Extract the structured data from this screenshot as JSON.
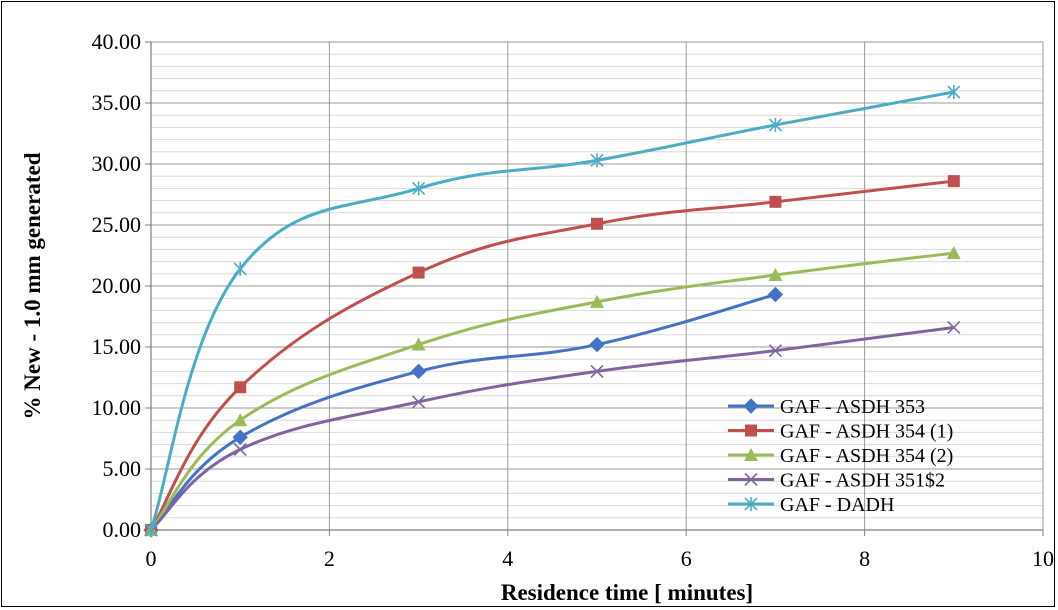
{
  "chart_data": {
    "type": "line",
    "title": "",
    "xlabel": "Residence time [ minutes]",
    "ylabel": "% New - 1.0 mm generated",
    "xlim": [
      0,
      10
    ],
    "ylim": [
      0,
      40
    ],
    "x_ticks": [
      0,
      2,
      4,
      6,
      8,
      10
    ],
    "x_tick_labels": [
      "0",
      "2",
      "4",
      "6",
      "8",
      "10"
    ],
    "y_ticks": [
      0,
      5,
      10,
      15,
      20,
      25,
      30,
      35,
      40
    ],
    "y_tick_labels": [
      "0.00",
      "5.00",
      "10.00",
      "15.00",
      "20.00",
      "25.00",
      "30.00",
      "35.00",
      "40.00"
    ],
    "y_minor_step": 1,
    "grid": true,
    "smooth": true,
    "legend_position": "bottom-right",
    "series": [
      {
        "name": "GAF - ASDH 353",
        "marker": "diamond",
        "color": "#4472C4",
        "x": [
          0,
          1,
          3,
          5,
          7
        ],
        "y": [
          0,
          7.6,
          13.0,
          15.2,
          19.3
        ]
      },
      {
        "name": "GAF - ASDH 354 (1)",
        "marker": "square",
        "color": "#C0504D",
        "x": [
          0,
          1,
          3,
          5,
          7,
          9
        ],
        "y": [
          0,
          11.7,
          21.1,
          25.1,
          26.9,
          28.6
        ]
      },
      {
        "name": "GAF - ASDH 354 (2)",
        "marker": "triangle",
        "color": "#9BBB59",
        "x": [
          0,
          1,
          3,
          5,
          7,
          9
        ],
        "y": [
          0,
          9.0,
          15.2,
          18.7,
          20.9,
          22.7
        ]
      },
      {
        "name": "GAF - ASDH 351$2",
        "marker": "x",
        "color": "#8064A2",
        "x": [
          0,
          1,
          3,
          5,
          7,
          9
        ],
        "y": [
          0,
          6.6,
          10.5,
          13.0,
          14.7,
          16.6
        ]
      },
      {
        "name": "GAF - DADH",
        "marker": "star",
        "color": "#4BACC6",
        "x": [
          0,
          1,
          3,
          5,
          7,
          9
        ],
        "y": [
          0,
          21.4,
          28.0,
          30.3,
          33.2,
          35.9
        ]
      }
    ]
  }
}
